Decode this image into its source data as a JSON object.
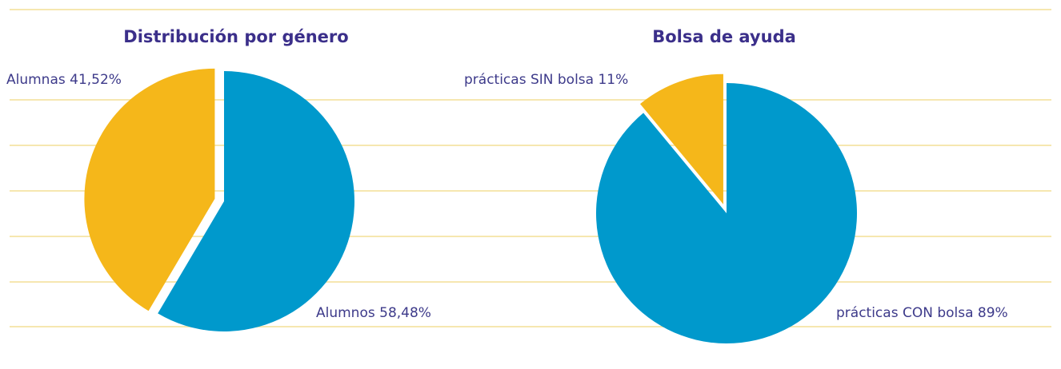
{
  "chart_data": [
    {
      "type": "pie",
      "title": "Distribución por género",
      "categories": [
        "Alumnos",
        "Alumnas"
      ],
      "values": [
        58.48,
        41.52
      ],
      "value_labels": [
        "Alumnos 58,48%",
        "Alumnas 41,52%"
      ],
      "colors": [
        "#0099cc",
        "#f5b71a"
      ]
    },
    {
      "type": "pie",
      "title": "Bolsa de ayuda",
      "categories": [
        "prácticas CON bolsa",
        "prácticas SIN bolsa"
      ],
      "values": [
        89,
        11
      ],
      "value_labels": [
        "prácticas CON bolsa 89%",
        "prácticas SIN bolsa 11%"
      ],
      "colors": [
        "#0099cc",
        "#f5b71a"
      ]
    }
  ]
}
